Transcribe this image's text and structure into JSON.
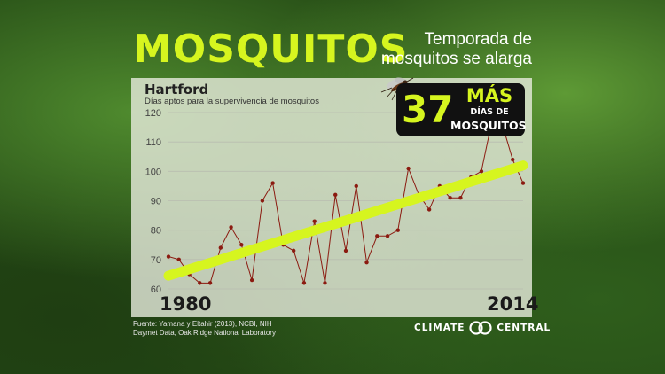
{
  "header": {
    "title": "MOSQUITOS",
    "subtitle_line1": "Temporada de",
    "subtitle_line2": "mosquitos se alarga"
  },
  "callout": {
    "number": "37",
    "word1": "MÁS",
    "word2": "DÍAS DE",
    "word3": "MOSQUITOS"
  },
  "footer": {
    "source_line1": "Fuente: Yamana y Eltahir (2013), NCBI, NIH",
    "source_line2": "Daymet Data, Oak Ridge National Laboratory",
    "logo_left": "CLIMATE",
    "logo_right": "CENTRAL"
  },
  "colors": {
    "accent": "#d6f51f",
    "series": "#8b1a10",
    "trend": "#d6f51f"
  },
  "chart_data": {
    "type": "line",
    "title": "Hartford",
    "subtitle": "Días aptos para la supervivencia de mosquitos",
    "x_start_label": "1980",
    "x_end_label": "2014",
    "xlim": [
      1980,
      2014
    ],
    "ylim": [
      60,
      120
    ],
    "yticks": [
      60,
      70,
      80,
      90,
      100,
      110,
      120
    ],
    "grid": true,
    "x": [
      1980,
      1981,
      1982,
      1983,
      1984,
      1985,
      1986,
      1987,
      1988,
      1989,
      1990,
      1991,
      1992,
      1993,
      1994,
      1995,
      1996,
      1997,
      1998,
      1999,
      2000,
      2001,
      2002,
      2003,
      2004,
      2005,
      2006,
      2007,
      2008,
      2009,
      2010,
      2011,
      2012,
      2013,
      2014
    ],
    "series": [
      {
        "values": [
          71,
          70,
          65,
          62,
          62,
          74,
          81,
          75,
          63,
          90,
          96,
          75,
          73,
          62,
          83,
          62,
          92,
          73,
          95,
          69,
          78,
          78,
          80,
          101,
          92,
          87,
          95,
          91,
          91,
          98,
          100,
          117,
          116,
          104,
          96
        ]
      }
    ],
    "trend": {
      "start": 64.5,
      "end": 102.0
    }
  }
}
